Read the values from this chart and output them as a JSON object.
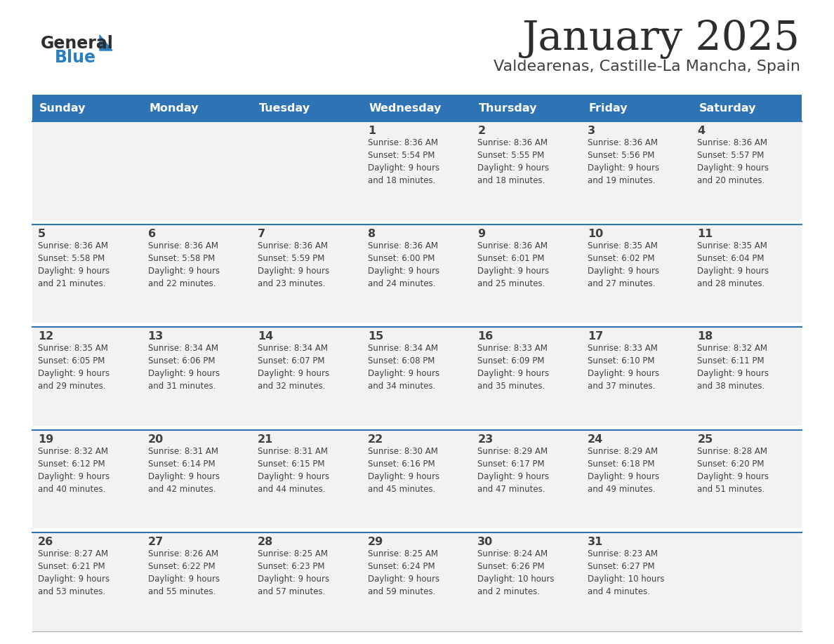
{
  "title": "January 2025",
  "subtitle": "Valdearenas, Castille-La Mancha, Spain",
  "days_of_week": [
    "Sunday",
    "Monday",
    "Tuesday",
    "Wednesday",
    "Thursday",
    "Friday",
    "Saturday"
  ],
  "header_bg": "#2e74b5",
  "header_text": "#ffffff",
  "row_bg": "#f2f2f2",
  "cell_text": "#404040",
  "divider_color": "#2e74b5",
  "title_color": "#2d2d2d",
  "subtitle_color": "#404040",
  "logo_general_color": "#2d2d2d",
  "logo_blue_color": "#2a7fc1",
  "calendar": [
    [
      {
        "day": "",
        "info": ""
      },
      {
        "day": "",
        "info": ""
      },
      {
        "day": "",
        "info": ""
      },
      {
        "day": "1",
        "info": "Sunrise: 8:36 AM\nSunset: 5:54 PM\nDaylight: 9 hours\nand 18 minutes."
      },
      {
        "day": "2",
        "info": "Sunrise: 8:36 AM\nSunset: 5:55 PM\nDaylight: 9 hours\nand 18 minutes."
      },
      {
        "day": "3",
        "info": "Sunrise: 8:36 AM\nSunset: 5:56 PM\nDaylight: 9 hours\nand 19 minutes."
      },
      {
        "day": "4",
        "info": "Sunrise: 8:36 AM\nSunset: 5:57 PM\nDaylight: 9 hours\nand 20 minutes."
      }
    ],
    [
      {
        "day": "5",
        "info": "Sunrise: 8:36 AM\nSunset: 5:58 PM\nDaylight: 9 hours\nand 21 minutes."
      },
      {
        "day": "6",
        "info": "Sunrise: 8:36 AM\nSunset: 5:58 PM\nDaylight: 9 hours\nand 22 minutes."
      },
      {
        "day": "7",
        "info": "Sunrise: 8:36 AM\nSunset: 5:59 PM\nDaylight: 9 hours\nand 23 minutes."
      },
      {
        "day": "8",
        "info": "Sunrise: 8:36 AM\nSunset: 6:00 PM\nDaylight: 9 hours\nand 24 minutes."
      },
      {
        "day": "9",
        "info": "Sunrise: 8:36 AM\nSunset: 6:01 PM\nDaylight: 9 hours\nand 25 minutes."
      },
      {
        "day": "10",
        "info": "Sunrise: 8:35 AM\nSunset: 6:02 PM\nDaylight: 9 hours\nand 27 minutes."
      },
      {
        "day": "11",
        "info": "Sunrise: 8:35 AM\nSunset: 6:04 PM\nDaylight: 9 hours\nand 28 minutes."
      }
    ],
    [
      {
        "day": "12",
        "info": "Sunrise: 8:35 AM\nSunset: 6:05 PM\nDaylight: 9 hours\nand 29 minutes."
      },
      {
        "day": "13",
        "info": "Sunrise: 8:34 AM\nSunset: 6:06 PM\nDaylight: 9 hours\nand 31 minutes."
      },
      {
        "day": "14",
        "info": "Sunrise: 8:34 AM\nSunset: 6:07 PM\nDaylight: 9 hours\nand 32 minutes."
      },
      {
        "day": "15",
        "info": "Sunrise: 8:34 AM\nSunset: 6:08 PM\nDaylight: 9 hours\nand 34 minutes."
      },
      {
        "day": "16",
        "info": "Sunrise: 8:33 AM\nSunset: 6:09 PM\nDaylight: 9 hours\nand 35 minutes."
      },
      {
        "day": "17",
        "info": "Sunrise: 8:33 AM\nSunset: 6:10 PM\nDaylight: 9 hours\nand 37 minutes."
      },
      {
        "day": "18",
        "info": "Sunrise: 8:32 AM\nSunset: 6:11 PM\nDaylight: 9 hours\nand 38 minutes."
      }
    ],
    [
      {
        "day": "19",
        "info": "Sunrise: 8:32 AM\nSunset: 6:12 PM\nDaylight: 9 hours\nand 40 minutes."
      },
      {
        "day": "20",
        "info": "Sunrise: 8:31 AM\nSunset: 6:14 PM\nDaylight: 9 hours\nand 42 minutes."
      },
      {
        "day": "21",
        "info": "Sunrise: 8:31 AM\nSunset: 6:15 PM\nDaylight: 9 hours\nand 44 minutes."
      },
      {
        "day": "22",
        "info": "Sunrise: 8:30 AM\nSunset: 6:16 PM\nDaylight: 9 hours\nand 45 minutes."
      },
      {
        "day": "23",
        "info": "Sunrise: 8:29 AM\nSunset: 6:17 PM\nDaylight: 9 hours\nand 47 minutes."
      },
      {
        "day": "24",
        "info": "Sunrise: 8:29 AM\nSunset: 6:18 PM\nDaylight: 9 hours\nand 49 minutes."
      },
      {
        "day": "25",
        "info": "Sunrise: 8:28 AM\nSunset: 6:20 PM\nDaylight: 9 hours\nand 51 minutes."
      }
    ],
    [
      {
        "day": "26",
        "info": "Sunrise: 8:27 AM\nSunset: 6:21 PM\nDaylight: 9 hours\nand 53 minutes."
      },
      {
        "day": "27",
        "info": "Sunrise: 8:26 AM\nSunset: 6:22 PM\nDaylight: 9 hours\nand 55 minutes."
      },
      {
        "day": "28",
        "info": "Sunrise: 8:25 AM\nSunset: 6:23 PM\nDaylight: 9 hours\nand 57 minutes."
      },
      {
        "day": "29",
        "info": "Sunrise: 8:25 AM\nSunset: 6:24 PM\nDaylight: 9 hours\nand 59 minutes."
      },
      {
        "day": "30",
        "info": "Sunrise: 8:24 AM\nSunset: 6:26 PM\nDaylight: 10 hours\nand 2 minutes."
      },
      {
        "day": "31",
        "info": "Sunrise: 8:23 AM\nSunset: 6:27 PM\nDaylight: 10 hours\nand 4 minutes."
      },
      {
        "day": "",
        "info": ""
      }
    ]
  ]
}
